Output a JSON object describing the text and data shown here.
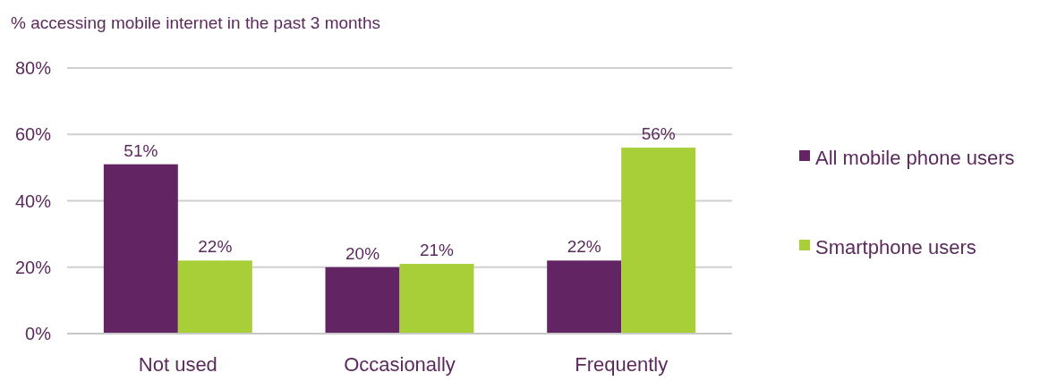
{
  "chart_data": {
    "type": "bar",
    "title": "% accessing mobile internet in the past 3 months",
    "categories": [
      "Not used",
      "Occasionally",
      "Frequently"
    ],
    "series": [
      {
        "name": "All mobile phone users",
        "color": "#632463",
        "values": [
          51,
          20,
          22
        ],
        "value_labels": [
          "51%",
          "20%",
          "22%"
        ]
      },
      {
        "name": "Smartphone users",
        "color": "#a8cf38",
        "values": [
          22,
          21,
          56
        ],
        "value_labels": [
          "22%",
          "21%",
          "56%"
        ]
      }
    ],
    "ylim": [
      0,
      80
    ],
    "yticks": [
      {
        "value": 0,
        "label": "0%"
      },
      {
        "value": 20,
        "label": "20%"
      },
      {
        "value": 40,
        "label": "40%"
      },
      {
        "value": 60,
        "label": "60%"
      },
      {
        "value": 80,
        "label": "80%"
      }
    ],
    "grid": "y",
    "legend": "right"
  }
}
